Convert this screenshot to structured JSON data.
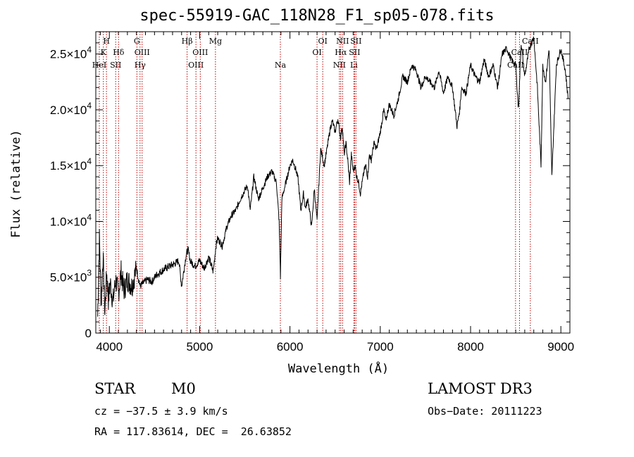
{
  "chart_data": {
    "type": "line",
    "title": "spec-55919-GAC_118N28_F1_sp05-078.fits",
    "xlabel": "Wavelength (Å)",
    "ylabel": "Flux (relative)",
    "xlim": [
      3850,
      9100
    ],
    "ylim": [
      0,
      27000
    ],
    "x_ticks": [
      4000,
      5000,
      6000,
      7000,
      8000,
      9000
    ],
    "y_ticks": [
      {
        "value": 0,
        "mant": "0",
        "exp": ""
      },
      {
        "value": 5000,
        "mant": "5.0×10",
        "exp": "3"
      },
      {
        "value": 10000,
        "mant": "1.0×10",
        "exp": "4"
      },
      {
        "value": 15000,
        "mant": "1.5×10",
        "exp": "4"
      },
      {
        "value": 20000,
        "mant": "2.0×10",
        "exp": "4"
      },
      {
        "value": 25000,
        "mant": "2.5×10",
        "exp": "4"
      }
    ],
    "series": [
      {
        "name": "flux",
        "x": [
          3870,
          3890,
          3910,
          3930,
          3950,
          3970,
          3990,
          4010,
          4040,
          4070,
          4100,
          4130,
          4160,
          4200,
          4250,
          4300,
          4340,
          4380,
          4420,
          4470,
          4520,
          4570,
          4620,
          4670,
          4720,
          4770,
          4800,
          4850,
          4870,
          4900,
          4950,
          5000,
          5050,
          5100,
          5150,
          5180,
          5200,
          5250,
          5300,
          5350,
          5400,
          5450,
          5500,
          5530,
          5560,
          5600,
          5650,
          5700,
          5750,
          5800,
          5850,
          5880,
          5895,
          5910,
          5940,
          5970,
          6000,
          6030,
          6060,
          6090,
          6120,
          6150,
          6170,
          6200,
          6240,
          6270,
          6300,
          6340,
          6380,
          6420,
          6450,
          6470,
          6500,
          6530,
          6560,
          6580,
          6600,
          6620,
          6640,
          6660,
          6680,
          6700,
          6720,
          6740,
          6760,
          6780,
          6800,
          6820,
          6840,
          6860,
          6880,
          6900,
          6930,
          6960,
          7000,
          7040,
          7060,
          7100,
          7150,
          7200,
          7250,
          7300,
          7350,
          7400,
          7450,
          7500,
          7550,
          7600,
          7650,
          7700,
          7750,
          7800,
          7850,
          7880,
          7900,
          7950,
          8000,
          8050,
          8100,
          8150,
          8200,
          8250,
          8300,
          8350,
          8400,
          8450,
          8500,
          8530,
          8560,
          8600,
          8650,
          8700,
          8740,
          8780,
          8800,
          8830,
          8870,
          8900,
          8950,
          9000,
          9050,
          9080
        ],
        "y": [
          1500,
          8500,
          2500,
          7000,
          1800,
          5500,
          3000,
          4500,
          2800,
          4800,
          3500,
          5500,
          3800,
          4800,
          4200,
          5800,
          4200,
          4500,
          4800,
          4600,
          5200,
          5500,
          5800,
          6000,
          6200,
          6500,
          4200,
          7000,
          7500,
          6400,
          6000,
          6500,
          5800,
          6800,
          5500,
          7800,
          8500,
          7800,
          9500,
          10500,
          11000,
          12000,
          12800,
          13200,
          11000,
          14000,
          12000,
          13000,
          14000,
          14500,
          13500,
          10000,
          5000,
          12000,
          13000,
          14000,
          15000,
          15500,
          14800,
          13800,
          11000,
          12500,
          11200,
          12000,
          9500,
          13000,
          10000,
          16500,
          15000,
          17000,
          18500,
          19000,
          18000,
          19200,
          17500,
          18500,
          16000,
          17000,
          15500,
          13500,
          16000,
          14500,
          15000,
          14000,
          13500,
          12500,
          13500,
          14500,
          15000,
          14000,
          16000,
          15500,
          17000,
          16500,
          18000,
          20000,
          19000,
          20500,
          19500,
          21000,
          23000,
          22500,
          24000,
          23500,
          22000,
          23000,
          22500,
          22000,
          23500,
          21500,
          23000,
          22000,
          18500,
          20000,
          22000,
          21500,
          24000,
          23000,
          22500,
          24500,
          23000,
          24000,
          22000,
          25000,
          25500,
          24500,
          24000,
          20000,
          26000,
          23000,
          25500,
          26500,
          22000,
          15000,
          24000,
          22500,
          25500,
          14000,
          24000,
          25500,
          23500,
          21000
        ]
      }
    ],
    "lines": [
      {
        "name": "K",
        "x": 3934,
        "row": 1
      },
      {
        "name": "H",
        "x": 3968,
        "row": 0
      },
      {
        "name": "HeI",
        "x": 3889,
        "row": 2
      },
      {
        "name": "SII",
        "x": 4070,
        "row": 2
      },
      {
        "name": "Hδ",
        "x": 4102,
        "row": 1
      },
      {
        "name": "G",
        "x": 4305,
        "row": 0
      },
      {
        "name": "Hγ",
        "x": 4340,
        "row": 2
      },
      {
        "name": "OIII",
        "x": 4363,
        "row": 1
      },
      {
        "name": "Hβ",
        "x": 4861,
        "row": 0
      },
      {
        "name": "OIII",
        "x": 4959,
        "row": 2
      },
      {
        "name": "OIII",
        "x": 5007,
        "row": 1
      },
      {
        "name": "Mg",
        "x": 5175,
        "row": 0
      },
      {
        "name": "Na",
        "x": 5894,
        "row": 2
      },
      {
        "name": "OI",
        "x": 6300,
        "row": 1
      },
      {
        "name": "OI",
        "x": 6363,
        "row": 0
      },
      {
        "name": "NII",
        "x": 6548,
        "row": 2
      },
      {
        "name": "Hα",
        "x": 6563,
        "row": 1
      },
      {
        "name": "NII",
        "x": 6583,
        "row": 0
      },
      {
        "name": "Li",
        "x": 6708,
        "row": 2
      },
      {
        "name": "SII",
        "x": 6716,
        "row": 1
      },
      {
        "name": "SII",
        "x": 6731,
        "row": 0
      },
      {
        "name": "CaII",
        "x": 8498,
        "row": 2
      },
      {
        "name": "CaII",
        "x": 8542,
        "row": 1
      },
      {
        "name": "CaII",
        "x": 8662,
        "row": 0
      }
    ]
  },
  "info": {
    "class": "STAR",
    "subclass": "M0",
    "survey": "LAMOST DR3",
    "cz": "cz = −37.5 ± 3.9 km/s",
    "obs_date": "Obs−Date: 20111223",
    "radec": "RA = 117.83614, DEC =  26.63852"
  },
  "colors": {
    "spectrum": "#000000",
    "line_marker": "#c00000",
    "axis": "#000000"
  }
}
